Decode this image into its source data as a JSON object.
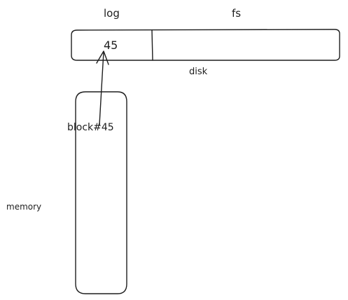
{
  "diagram": {
    "labels": {
      "log": "log",
      "fs": "fs",
      "block_value": "45",
      "disk": "disk",
      "block_ref": "block#45",
      "memory": "memory"
    },
    "colors": {
      "ink": "#1e1e1e",
      "background": "#ffffff"
    }
  }
}
